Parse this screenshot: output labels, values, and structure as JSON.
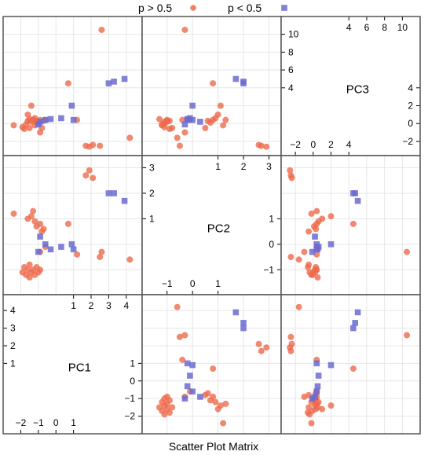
{
  "chart_data": {
    "type": "scatter",
    "title": "Scatter Plot Matrix",
    "legend": {
      "placement": "top",
      "entries": [
        {
          "label": "p > 0.5",
          "color": "#ee6a4c",
          "marker": "circle"
        },
        {
          "label": "p < 0.5",
          "color": "#6b6bd1",
          "marker": "square"
        }
      ]
    },
    "variables": [
      "PC1",
      "PC2",
      "PC3"
    ],
    "ranges": {
      "PC1": [
        -2.6,
        4.5
      ],
      "PC2": [
        -1.7,
        3.2
      ],
      "PC3": [
        -2.8,
        11.2
      ]
    },
    "ticks": {
      "PC1": {
        "low": [
          -2,
          -1,
          0,
          1
        ],
        "high": [
          1,
          2,
          3,
          4
        ]
      },
      "PC2": {
        "low": [
          -1,
          0,
          1
        ],
        "high": [
          1,
          2,
          3
        ]
      },
      "PC3": {
        "low": [
          -2,
          0,
          2,
          4
        ],
        "high": [
          4,
          6,
          8,
          10
        ]
      }
    },
    "grid": true,
    "series": [
      {
        "name": "p > 0.5",
        "points": [
          {
            "PC1": -2.4,
            "PC2": 1.2,
            "PC3": -0.2
          },
          {
            "PC1": -1.9,
            "PC2": -1.1,
            "PC3": -0.4
          },
          {
            "PC1": -1.8,
            "PC2": -0.9,
            "PC3": -0.6
          },
          {
            "PC1": -1.7,
            "PC2": -1.2,
            "PC3": -0.1
          },
          {
            "PC1": -1.6,
            "PC2": -1.0,
            "PC3": 0.3
          },
          {
            "PC1": -1.5,
            "PC2": -1.3,
            "PC3": 0.5
          },
          {
            "PC1": -1.5,
            "PC2": -0.8,
            "PC3": -0.5
          },
          {
            "PC1": -1.4,
            "PC2": -1.1,
            "PC3": 0.2
          },
          {
            "PC1": -1.3,
            "PC2": -1.0,
            "PC3": 0.4
          },
          {
            "PC1": -1.2,
            "PC2": -1.2,
            "PC3": -0.2
          },
          {
            "PC1": -1.1,
            "PC2": -0.9,
            "PC3": 0.3
          },
          {
            "PC1": -1.0,
            "PC2": -1.1,
            "PC3": 0.0
          },
          {
            "PC1": -0.9,
            "PC2": -1.0,
            "PC3": 0.2
          },
          {
            "PC1": -1.6,
            "PC2": 1.0,
            "PC3": 1.0
          },
          {
            "PC1": -1.4,
            "PC2": 1.1,
            "PC3": 2.0
          },
          {
            "PC1": -1.2,
            "PC2": 0.9,
            "PC3": 0.6
          },
          {
            "PC1": -1.1,
            "PC2": 0.7,
            "PC3": 0.1
          },
          {
            "PC1": -0.9,
            "PC2": 0.8,
            "PC3": 0.4
          },
          {
            "PC1": -0.8,
            "PC2": 0.5,
            "PC3": -0.5
          },
          {
            "PC1": -0.7,
            "PC2": 0.6,
            "PC3": 0.3
          },
          {
            "PC1": -0.6,
            "PC2": -0.1,
            "PC3": 0.4
          },
          {
            "PC1": -0.9,
            "PC2": -0.3,
            "PC3": -1.0
          },
          {
            "PC1": -1.3,
            "PC2": 1.3,
            "PC3": 0.4
          },
          {
            "PC1": 0.7,
            "PC2": 0.8,
            "PC3": 4.5
          },
          {
            "PC1": 1.2,
            "PC2": -0.4,
            "PC3": 0.4
          },
          {
            "PC1": 1.7,
            "PC2": 2.7,
            "PC3": -2.5
          },
          {
            "PC1": 1.9,
            "PC2": 2.9,
            "PC3": -2.6
          },
          {
            "PC1": 2.1,
            "PC2": 2.6,
            "PC3": -2.4
          },
          {
            "PC1": 2.5,
            "PC2": -0.5,
            "PC3": -2.5
          },
          {
            "PC1": 2.6,
            "PC2": -0.3,
            "PC3": 10.5
          },
          {
            "PC1": 4.2,
            "PC2": -0.6,
            "PC3": -1.6
          }
        ]
      },
      {
        "name": "p < 0.5",
        "points": [
          {
            "PC1": -1.0,
            "PC2": -0.3,
            "PC3": -0.1
          },
          {
            "PC1": -0.9,
            "PC2": 0.3,
            "PC3": 0.2
          },
          {
            "PC1": -0.6,
            "PC2": 0.0,
            "PC3": 0.4
          },
          {
            "PC1": -0.3,
            "PC2": -0.2,
            "PC3": 0.5
          },
          {
            "PC1": 0.3,
            "PC2": -0.1,
            "PC3": 0.6
          },
          {
            "PC1": 0.9,
            "PC2": 0.0,
            "PC3": 2.0
          },
          {
            "PC1": 1.0,
            "PC2": -0.2,
            "PC3": 0.4
          },
          {
            "PC1": 3.0,
            "PC2": 2.0,
            "PC3": 4.5
          },
          {
            "PC1": 3.3,
            "PC2": 2.0,
            "PC3": 4.7
          },
          {
            "PC1": 3.9,
            "PC2": 1.7,
            "PC3": 5.0
          }
        ]
      }
    ]
  }
}
